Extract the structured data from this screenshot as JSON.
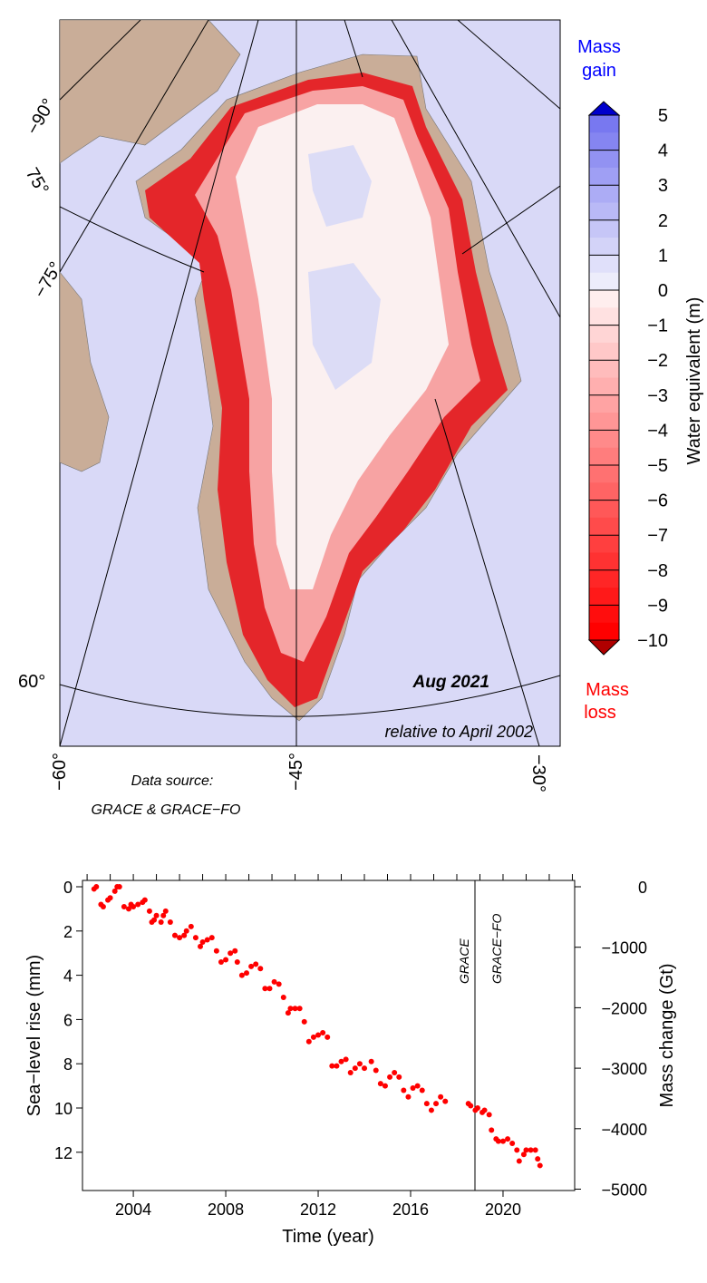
{
  "map": {
    "date_label": "Aug 2021",
    "relative_label": "relative to April 2002",
    "source_label": "Data source:",
    "source_value": "GRACE & GRACE−FO",
    "lon_labels": [
      "−60°",
      "−45°",
      "−30°"
    ],
    "lat_labels": [
      "−90°",
      "75°",
      "−75°",
      "60°"
    ],
    "colors": {
      "ocean": "#d9d9f7",
      "land": "#c9ad98",
      "loss": "#ff0000",
      "gain": "#0000cc"
    }
  },
  "colorbar": {
    "title": "Water equivalent (m)",
    "gain_label": [
      "Mass",
      "gain"
    ],
    "loss_label": [
      "Mass",
      "loss"
    ],
    "min": -10,
    "max": 5,
    "ticks": [
      "5",
      "4",
      "3",
      "2",
      "1",
      "0",
      "−1",
      "−2",
      "−3",
      "−4",
      "−5",
      "−6",
      "−7",
      "−8",
      "−9",
      "−10"
    ]
  },
  "chart_data": {
    "type": "scatter",
    "xlabel": "Time (year)",
    "ylabel": "Sea−level rise (mm)",
    "y2label": "Mass change (Gt)",
    "xlim": [
      2001.8,
      2023.1
    ],
    "ylim": [
      0,
      13.6
    ],
    "y_inverted": true,
    "y2lim": [
      0,
      -5000
    ],
    "xticks": [
      "2004",
      "2008",
      "2012",
      "2016",
      "2020"
    ],
    "yticks": [
      "0",
      "2",
      "4",
      "6",
      "8",
      "10",
      "12"
    ],
    "y2ticks": [
      "0",
      "−1000",
      "−2000",
      "−3000",
      "−4000",
      "−5000"
    ],
    "mission_split_year": 2018.0,
    "missions": [
      "GRACE",
      "GRACE−FO"
    ],
    "point_color": "#ff0000",
    "points": [
      [
        2002.3,
        0.1
      ],
      [
        2002.4,
        0.0
      ],
      [
        2002.6,
        0.8
      ],
      [
        2002.7,
        0.9
      ],
      [
        2002.9,
        0.6
      ],
      [
        2003.0,
        0.5
      ],
      [
        2003.2,
        0.2
      ],
      [
        2003.3,
        0.0
      ],
      [
        2003.4,
        0.0
      ],
      [
        2003.6,
        0.9
      ],
      [
        2003.8,
        1.0
      ],
      [
        2003.9,
        0.8
      ],
      [
        2004.0,
        0.9
      ],
      [
        2004.2,
        0.8
      ],
      [
        2004.4,
        0.7
      ],
      [
        2004.5,
        0.6
      ],
      [
        2004.7,
        1.1
      ],
      [
        2004.8,
        1.6
      ],
      [
        2004.9,
        1.5
      ],
      [
        2005.0,
        1.3
      ],
      [
        2005.2,
        1.6
      ],
      [
        2005.3,
        1.3
      ],
      [
        2005.4,
        1.1
      ],
      [
        2005.6,
        1.6
      ],
      [
        2005.8,
        2.2
      ],
      [
        2006.0,
        2.3
      ],
      [
        2006.2,
        2.2
      ],
      [
        2006.3,
        2.0
      ],
      [
        2006.5,
        1.8
      ],
      [
        2006.7,
        2.3
      ],
      [
        2006.9,
        2.7
      ],
      [
        2007.0,
        2.5
      ],
      [
        2007.2,
        2.4
      ],
      [
        2007.4,
        2.3
      ],
      [
        2007.6,
        2.9
      ],
      [
        2007.8,
        3.4
      ],
      [
        2008.0,
        3.3
      ],
      [
        2008.2,
        3.0
      ],
      [
        2008.4,
        2.9
      ],
      [
        2008.5,
        3.4
      ],
      [
        2008.7,
        4.0
      ],
      [
        2008.9,
        3.9
      ],
      [
        2009.1,
        3.6
      ],
      [
        2009.3,
        3.5
      ],
      [
        2009.5,
        3.7
      ],
      [
        2009.7,
        4.6
      ],
      [
        2009.9,
        4.6
      ],
      [
        2010.1,
        4.3
      ],
      [
        2010.3,
        4.4
      ],
      [
        2010.5,
        5.0
      ],
      [
        2010.7,
        5.7
      ],
      [
        2010.8,
        5.5
      ],
      [
        2011.0,
        5.5
      ],
      [
        2011.2,
        5.5
      ],
      [
        2011.4,
        6.1
      ],
      [
        2011.6,
        7.0
      ],
      [
        2011.8,
        6.8
      ],
      [
        2012.0,
        6.7
      ],
      [
        2012.2,
        6.6
      ],
      [
        2012.4,
        6.8
      ],
      [
        2012.6,
        8.1
      ],
      [
        2012.8,
        8.1
      ],
      [
        2013.0,
        7.9
      ],
      [
        2013.2,
        7.8
      ],
      [
        2013.4,
        8.4
      ],
      [
        2013.6,
        8.2
      ],
      [
        2013.8,
        8.0
      ],
      [
        2014.0,
        8.2
      ],
      [
        2014.3,
        7.9
      ],
      [
        2014.5,
        8.3
      ],
      [
        2014.7,
        8.9
      ],
      [
        2014.9,
        9.0
      ],
      [
        2015.1,
        8.6
      ],
      [
        2015.3,
        8.4
      ],
      [
        2015.5,
        8.6
      ],
      [
        2015.7,
        9.2
      ],
      [
        2015.9,
        9.5
      ],
      [
        2016.1,
        9.1
      ],
      [
        2016.3,
        9.0
      ],
      [
        2016.5,
        9.2
      ],
      [
        2016.7,
        9.8
      ],
      [
        2016.9,
        10.1
      ],
      [
        2017.1,
        9.8
      ],
      [
        2017.3,
        9.5
      ],
      [
        2017.5,
        9.7
      ],
      [
        2018.5,
        9.8
      ],
      [
        2018.6,
        9.9
      ],
      [
        2018.8,
        10.1
      ],
      [
        2018.9,
        10.0
      ],
      [
        2019.1,
        10.2
      ],
      [
        2019.2,
        10.1
      ],
      [
        2019.4,
        10.3
      ],
      [
        2019.5,
        11.0
      ],
      [
        2019.7,
        11.4
      ],
      [
        2019.8,
        11.5
      ],
      [
        2020.0,
        11.5
      ],
      [
        2020.2,
        11.4
      ],
      [
        2020.4,
        11.6
      ],
      [
        2020.6,
        11.9
      ],
      [
        2020.7,
        12.4
      ],
      [
        2020.9,
        12.1
      ],
      [
        2021.0,
        11.9
      ],
      [
        2021.2,
        11.9
      ],
      [
        2021.4,
        11.9
      ],
      [
        2021.5,
        12.3
      ],
      [
        2021.6,
        12.6
      ]
    ]
  }
}
